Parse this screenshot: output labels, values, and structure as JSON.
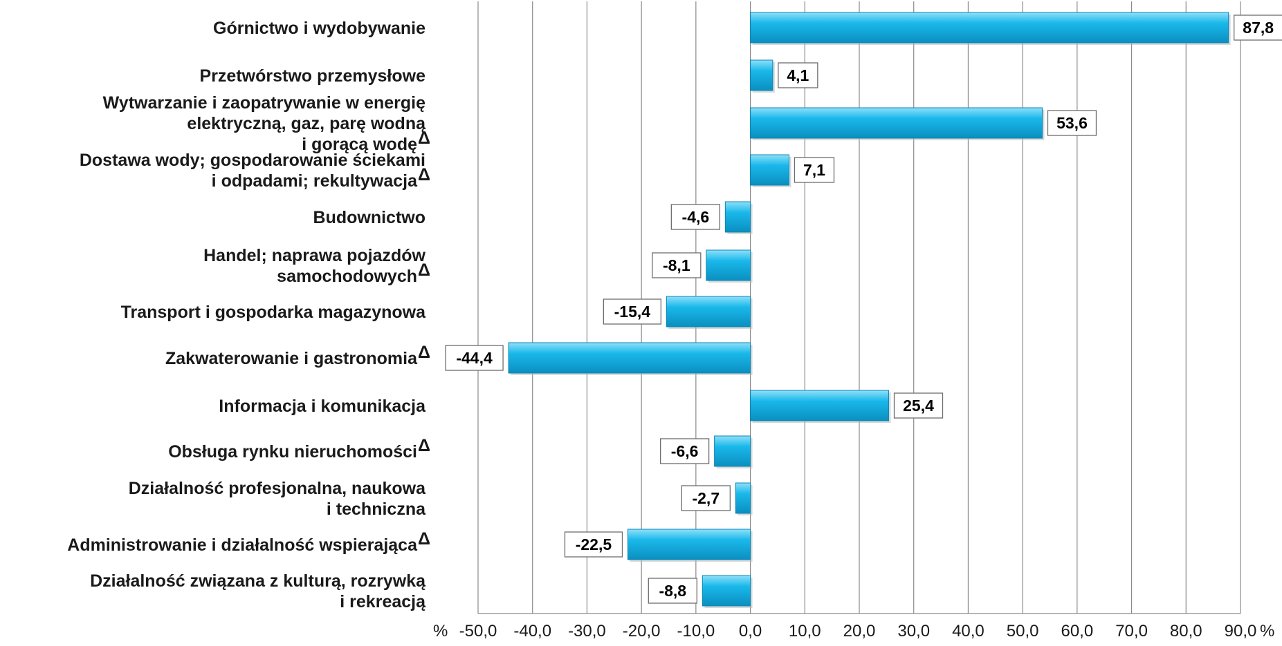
{
  "chart_data": {
    "type": "bar",
    "orientation": "horizontal",
    "categories": [
      [
        "Górnictwo i wydobywanie"
      ],
      [
        "Przetwórstwo przemysłowe"
      ],
      [
        "Wytwarzanie i zaopatrywanie w energię",
        "elektryczną, gaz, parę wodną",
        "i gorącą wodę"
      ],
      [
        "Dostawa wody; gospodarowanie ściekami",
        "i odpadami; rekultywacja"
      ],
      [
        "Budownictwo"
      ],
      [
        "Handel; naprawa pojazdów",
        "samochodowych"
      ],
      [
        "Transport i gospodarka magazynowa"
      ],
      [
        "Zakwaterowanie i gastronomia"
      ],
      [
        "Informacja i komunikacja"
      ],
      [
        "Obsługa rynku nieruchomości"
      ],
      [
        "Działalność profesjonalna, naukowa",
        "i techniczna"
      ],
      [
        "Administrowanie i działalność wspierająca"
      ],
      [
        "Działalność związana z kulturą, rozrywką",
        "i rekreacją"
      ]
    ],
    "category_marks": [
      "",
      "",
      "Δ",
      "Δ",
      "",
      "Δ",
      "",
      "Δ",
      "",
      "Δ",
      "",
      "Δ",
      ""
    ],
    "values": [
      87.8,
      4.1,
      53.6,
      7.1,
      -4.6,
      -8.1,
      -15.4,
      -44.4,
      25.4,
      -6.6,
      -2.7,
      -22.5,
      -8.8
    ],
    "value_labels": [
      "87,8",
      "4,1",
      "53,6",
      "7,1",
      "-4,6",
      "-8,1",
      "-15,4",
      "-44,4",
      "25,4",
      "-6,6",
      "-2,7",
      "-22,5",
      "-8,8"
    ],
    "xlim": [
      -50,
      90
    ],
    "x_ticks": [
      "-50,0",
      "-40,0",
      "-30,0",
      "-20,0",
      "-10,0",
      "0,0",
      "10,0",
      "20,0",
      "30,0",
      "40,0",
      "50,0",
      "60,0",
      "70,0",
      "80,0",
      "90,0"
    ],
    "x_unit_left": "%",
    "x_unit_right": "%",
    "grid": true,
    "bar_color": "#1ab8ea",
    "bar_color_light": "#8fe0fa",
    "bar_color_dark": "#0a8fc0"
  }
}
